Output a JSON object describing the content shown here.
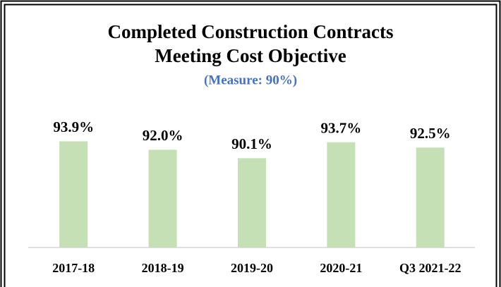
{
  "chart_data": {
    "type": "bar",
    "title": [
      "Completed Construction Contracts",
      "Meeting Cost Objective"
    ],
    "subtitle": "(Measure: 90%)",
    "categories": [
      "2017-18",
      "2018-19",
      "2019-20",
      "2020-21",
      "Q3 2021-22"
    ],
    "values": [
      93.9,
      92.0,
      90.1,
      93.7,
      92.5
    ],
    "value_labels": [
      "93.9%",
      "92.0%",
      "90.1%",
      "93.7%",
      "92.5%"
    ],
    "color": "#c5e0b4",
    "ylim": [
      70,
      100
    ]
  }
}
